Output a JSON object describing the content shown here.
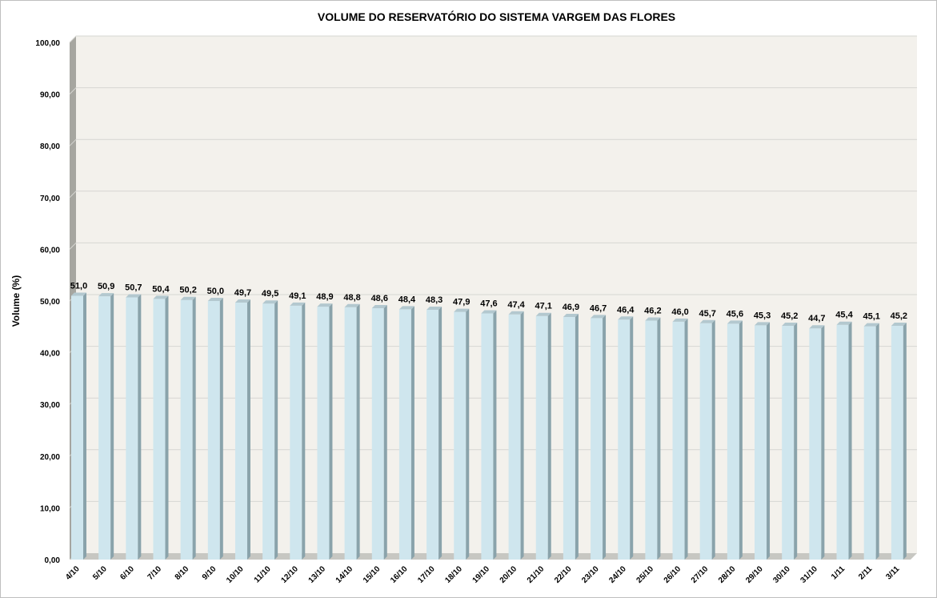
{
  "chart_data": {
    "type": "bar",
    "title": "VOLUME DO RESERVATÓRIO DO SISTEMA VARGEM DAS FLORES",
    "ylabel": "Volume (%)",
    "xlabel": "",
    "ylim": [
      0,
      100
    ],
    "y_ticks": [
      "0,00",
      "10,00",
      "20,00",
      "30,00",
      "40,00",
      "50,00",
      "60,00",
      "70,00",
      "80,00",
      "90,00",
      "100,00"
    ],
    "grid": true,
    "legend": "none",
    "style": "3d-column",
    "colors": {
      "bar_front": "#cfe6ee",
      "bar_side": "#8aa3ab",
      "bar_top": "#b3c8cf",
      "plot_back": "#f3f1ec",
      "plot_wall": "#a6a6a0",
      "plot_floor": "#c7c7c2",
      "gridline": "#d6d6d2"
    },
    "categories": [
      "4/10",
      "5/10",
      "6/10",
      "7/10",
      "8/10",
      "9/10",
      "10/10",
      "11/10",
      "12/10",
      "13/10",
      "14/10",
      "15/10",
      "16/10",
      "17/10",
      "18/10",
      "19/10",
      "20/10",
      "21/10",
      "22/10",
      "23/10",
      "24/10",
      "25/10",
      "26/10",
      "27/10",
      "28/10",
      "29/10",
      "30/10",
      "31/10",
      "1/11",
      "2/11",
      "3/11"
    ],
    "values": [
      51.0,
      50.9,
      50.7,
      50.4,
      50.2,
      50.0,
      49.7,
      49.5,
      49.1,
      48.9,
      48.8,
      48.6,
      48.4,
      48.3,
      47.9,
      47.6,
      47.4,
      47.1,
      46.9,
      46.7,
      46.4,
      46.2,
      46.0,
      45.7,
      45.6,
      45.3,
      45.2,
      44.7,
      45.4,
      45.1,
      45.2
    ],
    "data_labels": [
      "51,0",
      "50,9",
      "50,7",
      "50,4",
      "50,2",
      "50,0",
      "49,7",
      "49,5",
      "49,1",
      "48,9",
      "48,8",
      "48,6",
      "48,4",
      "48,3",
      "47,9",
      "47,6",
      "47,4",
      "47,1",
      "46,9",
      "46,7",
      "46,4",
      "46,2",
      "46,0",
      "45,7",
      "45,6",
      "45,3",
      "45,2",
      "44,7",
      "45,4",
      "45,1",
      "45,2"
    ]
  }
}
